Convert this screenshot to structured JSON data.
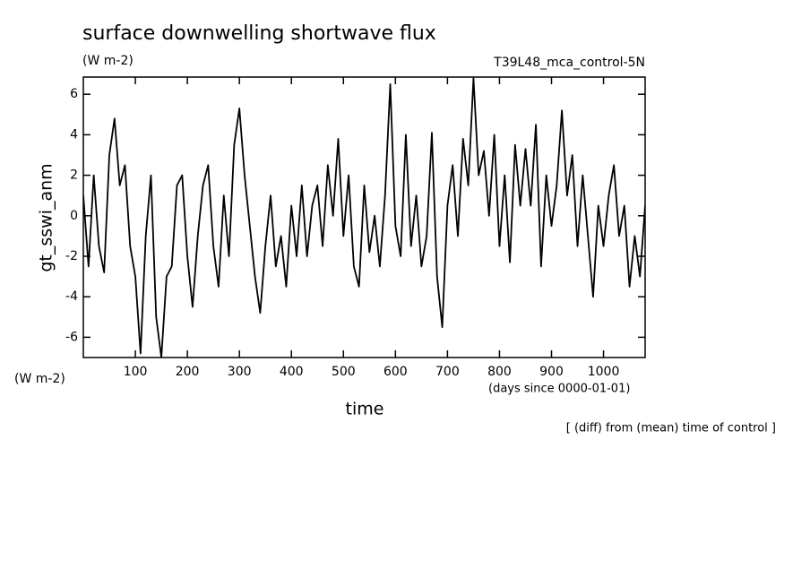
{
  "chart_data": {
    "type": "line",
    "title": "surface downwelling shortwave flux",
    "units": "(W m-2)",
    "subtitle": "T39L48_mca_control-5N",
    "ylabel": "gt_sswi_anm",
    "yunits": "(W m-2)",
    "xlabel": "time",
    "xunits": "(days since 0000-01-01)",
    "note": "[ (diff) from (mean) time of control ]",
    "xlim": [
      0,
      1080
    ],
    "ylim": [
      -7,
      6.85
    ],
    "xticks": [
      100,
      200,
      300,
      400,
      500,
      600,
      700,
      800,
      900,
      1000
    ],
    "yticks": [
      -6,
      -4,
      -2,
      0,
      2,
      4,
      6
    ],
    "x": [
      0,
      10,
      20,
      30,
      40,
      50,
      60,
      70,
      80,
      90,
      100,
      110,
      120,
      130,
      140,
      150,
      160,
      170,
      180,
      190,
      200,
      210,
      220,
      230,
      240,
      250,
      260,
      270,
      280,
      290,
      300,
      310,
      320,
      330,
      340,
      350,
      360,
      370,
      380,
      390,
      400,
      410,
      420,
      430,
      440,
      450,
      460,
      470,
      480,
      490,
      500,
      510,
      520,
      530,
      540,
      550,
      560,
      570,
      580,
      590,
      600,
      610,
      620,
      630,
      640,
      650,
      660,
      670,
      680,
      690,
      700,
      710,
      720,
      730,
      740,
      750,
      760,
      770,
      780,
      790,
      800,
      810,
      820,
      830,
      840,
      850,
      860,
      870,
      880,
      890,
      900,
      910,
      920,
      930,
      940,
      950,
      960,
      970,
      980,
      990,
      1000,
      1010,
      1020,
      1030,
      1040,
      1050,
      1060,
      1070,
      1080
    ],
    "series": [
      {
        "name": "gt_sswi_anm",
        "color": "#000000",
        "values": [
          1.0,
          -2.5,
          2.0,
          -1.5,
          -2.8,
          3.0,
          4.8,
          1.5,
          2.5,
          -1.5,
          -3.0,
          -6.8,
          -1.0,
          2.0,
          -5.0,
          -7.0,
          -3.0,
          -2.5,
          1.5,
          2.0,
          -2.0,
          -4.5,
          -1.0,
          1.5,
          2.5,
          -1.5,
          -3.5,
          1.0,
          -2.0,
          3.5,
          5.3,
          2.0,
          -0.5,
          -3.0,
          -4.8,
          -1.5,
          1.0,
          -2.5,
          -1.0,
          -3.5,
          0.5,
          -2.0,
          1.5,
          -2.0,
          0.5,
          1.5,
          -1.5,
          2.5,
          0.0,
          3.8,
          -1.0,
          2.0,
          -2.5,
          -3.5,
          1.5,
          -1.8,
          0.0,
          -2.5,
          1.0,
          6.5,
          -0.5,
          -2.0,
          4.0,
          -1.5,
          1.0,
          -2.5,
          -1.0,
          4.1,
          -3.0,
          -5.5,
          0.5,
          2.5,
          -1.0,
          3.8,
          1.5,
          6.8,
          2.0,
          3.2,
          0.0,
          4.0,
          -1.5,
          2.0,
          -2.3,
          3.5,
          0.5,
          3.3,
          0.5,
          4.5,
          -2.5,
          2.0,
          -0.5,
          1.5,
          5.2,
          1.0,
          3.0,
          -1.5,
          2.0,
          -1.0,
          -4.0,
          0.5,
          -1.5,
          1.0,
          2.5,
          -1.0,
          0.5,
          -3.5,
          -1.0,
          -3.0,
          0.5
        ]
      }
    ]
  }
}
